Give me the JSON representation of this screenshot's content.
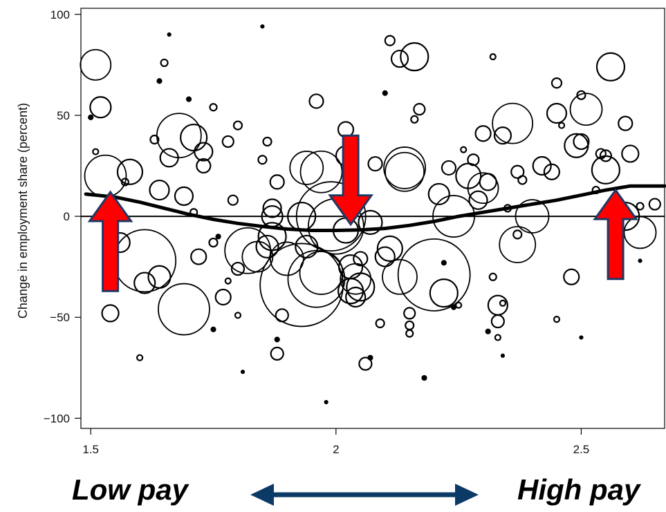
{
  "chart_data": {
    "type": "scatter",
    "ylabel": "Change in employment share (percent)",
    "xlim": [
      1.48,
      2.67
    ],
    "ylim": [
      -105,
      103
    ],
    "x_ticks": [
      1.5,
      2,
      2.5
    ],
    "y_ticks": [
      -100,
      -50,
      0,
      50,
      100
    ],
    "x_tick_labels": [
      "1.5",
      "2",
      "2.5"
    ],
    "y_tick_labels": [
      "−100",
      "−50",
      "0",
      "50",
      "100"
    ],
    "reference_line_y": 0,
    "marker": "open circles sized by employment weight",
    "points": [
      {
        "x": 1.51,
        "y": 75,
        "r": 22
      },
      {
        "x": 1.52,
        "y": 54,
        "r": 15
      },
      {
        "x": 1.5,
        "y": 49,
        "r": 3
      },
      {
        "x": 1.51,
        "y": 32,
        "r": 4
      },
      {
        "x": 1.53,
        "y": 20,
        "r": 30
      },
      {
        "x": 1.58,
        "y": 22,
        "r": 18
      },
      {
        "x": 1.57,
        "y": 17,
        "r": 5
      },
      {
        "x": 1.56,
        "y": -13,
        "r": 14
      },
      {
        "x": 1.54,
        "y": -48,
        "r": 12
      },
      {
        "x": 1.61,
        "y": -22,
        "r": 45
      },
      {
        "x": 1.61,
        "y": -33,
        "r": 15
      },
      {
        "x": 1.64,
        "y": -30,
        "r": 16
      },
      {
        "x": 1.6,
        "y": -70,
        "r": 4
      },
      {
        "x": 1.64,
        "y": 67,
        "r": 3
      },
      {
        "x": 1.65,
        "y": 76,
        "r": 5
      },
      {
        "x": 1.66,
        "y": 90,
        "r": 2
      },
      {
        "x": 1.63,
        "y": 38,
        "r": 6
      },
      {
        "x": 1.68,
        "y": 40,
        "r": 32
      },
      {
        "x": 1.66,
        "y": 29,
        "r": 13
      },
      {
        "x": 1.71,
        "y": 39,
        "r": 19
      },
      {
        "x": 1.73,
        "y": 32,
        "r": 13
      },
      {
        "x": 1.75,
        "y": 54,
        "r": 5
      },
      {
        "x": 1.73,
        "y": 25,
        "r": 10
      },
      {
        "x": 1.7,
        "y": 58,
        "r": 3
      },
      {
        "x": 1.78,
        "y": 37,
        "r": 8
      },
      {
        "x": 1.8,
        "y": 45,
        "r": 6
      },
      {
        "x": 1.64,
        "y": 13,
        "r": 14
      },
      {
        "x": 1.69,
        "y": 10,
        "r": 13
      },
      {
        "x": 1.71,
        "y": 2,
        "r": 5
      },
      {
        "x": 1.75,
        "y": -13,
        "r": 6
      },
      {
        "x": 1.76,
        "y": -10,
        "r": 3
      },
      {
        "x": 1.72,
        "y": -20,
        "r": 11
      },
      {
        "x": 1.77,
        "y": -40,
        "r": 11
      },
      {
        "x": 1.69,
        "y": -46,
        "r": 37
      },
      {
        "x": 1.78,
        "y": -32,
        "r": 4
      },
      {
        "x": 1.75,
        "y": -56,
        "r": 3
      },
      {
        "x": 1.82,
        "y": -17,
        "r": 33
      },
      {
        "x": 1.8,
        "y": -26,
        "r": 9
      },
      {
        "x": 1.8,
        "y": -49,
        "r": 4
      },
      {
        "x": 1.79,
        "y": 8,
        "r": 7
      },
      {
        "x": 1.84,
        "y": -20,
        "r": 22
      },
      {
        "x": 1.86,
        "y": -15,
        "r": 16
      },
      {
        "x": 1.87,
        "y": -10,
        "r": 20
      },
      {
        "x": 1.87,
        "y": 0,
        "r": 15
      },
      {
        "x": 1.87,
        "y": 4,
        "r": 13
      },
      {
        "x": 1.85,
        "y": 28,
        "r": 6
      },
      {
        "x": 1.86,
        "y": 37,
        "r": 6
      },
      {
        "x": 1.88,
        "y": 17,
        "r": 10
      },
      {
        "x": 1.88,
        "y": -68,
        "r": 9
      },
      {
        "x": 1.89,
        "y": -49,
        "r": 9
      },
      {
        "x": 1.88,
        "y": -61,
        "r": 3
      },
      {
        "x": 1.81,
        "y": -77,
        "r": 2
      },
      {
        "x": 1.85,
        "y": 94,
        "r": 2
      },
      {
        "x": 1.9,
        "y": -21,
        "r": 24
      },
      {
        "x": 1.93,
        "y": -34,
        "r": 60
      },
      {
        "x": 1.94,
        "y": -15,
        "r": 16
      },
      {
        "x": 1.93,
        "y": 0,
        "r": 20
      },
      {
        "x": 1.96,
        "y": -31,
        "r": 41
      },
      {
        "x": 1.97,
        "y": -28,
        "r": 31
      },
      {
        "x": 1.99,
        "y": 0,
        "r": 50
      },
      {
        "x": 1.97,
        "y": 22,
        "r": 30
      },
      {
        "x": 1.94,
        "y": 24,
        "r": 24
      },
      {
        "x": 1.96,
        "y": 57,
        "r": 10
      },
      {
        "x": 1.98,
        "y": -92,
        "r": 2
      },
      {
        "x": 2.0,
        "y": -5,
        "r": 40
      },
      {
        "x": 2.02,
        "y": -7,
        "r": 18
      },
      {
        "x": 2.03,
        "y": -25,
        "r": 17
      },
      {
        "x": 2.04,
        "y": -31,
        "r": 22
      },
      {
        "x": 2.05,
        "y": -35,
        "r": 20
      },
      {
        "x": 2.03,
        "y": -37,
        "r": 18
      },
      {
        "x": 2.04,
        "y": -40,
        "r": 14
      },
      {
        "x": 2.05,
        "y": -21,
        "r": 10
      },
      {
        "x": 2.02,
        "y": 43,
        "r": 11
      },
      {
        "x": 2.02,
        "y": 30,
        "r": 14
      },
      {
        "x": 2.07,
        "y": -3,
        "r": 17
      },
      {
        "x": 2.08,
        "y": 26,
        "r": 10
      },
      {
        "x": 2.06,
        "y": -73,
        "r": 9
      },
      {
        "x": 2.07,
        "y": -70,
        "r": 3
      },
      {
        "x": 2.09,
        "y": -53,
        "r": 6
      },
      {
        "x": 2.11,
        "y": -16,
        "r": 18
      },
      {
        "x": 2.1,
        "y": -20,
        "r": 14
      },
      {
        "x": 2.13,
        "y": -30,
        "r": 25
      },
      {
        "x": 2.14,
        "y": 22,
        "r": 28
      },
      {
        "x": 2.14,
        "y": 24,
        "r": 30
      },
      {
        "x": 2.15,
        "y": -48,
        "r": 8
      },
      {
        "x": 2.15,
        "y": -54,
        "r": 6
      },
      {
        "x": 2.15,
        "y": -58,
        "r": 5
      },
      {
        "x": 2.18,
        "y": -80,
        "r": 3
      },
      {
        "x": 2.1,
        "y": 61,
        "r": 3
      },
      {
        "x": 2.11,
        "y": 87,
        "r": 7
      },
      {
        "x": 2.13,
        "y": 78,
        "r": 12
      },
      {
        "x": 2.16,
        "y": 79,
        "r": 20
      },
      {
        "x": 2.17,
        "y": 53,
        "r": 8
      },
      {
        "x": 2.16,
        "y": 48,
        "r": 5
      },
      {
        "x": 2.2,
        "y": -29,
        "r": 52
      },
      {
        "x": 2.22,
        "y": -38,
        "r": 20
      },
      {
        "x": 2.21,
        "y": 11,
        "r": 15
      },
      {
        "x": 2.23,
        "y": 24,
        "r": 10
      },
      {
        "x": 2.24,
        "y": -45,
        "r": 3
      },
      {
        "x": 2.22,
        "y": -23,
        "r": 3
      },
      {
        "x": 2.25,
        "y": -44,
        "r": 4
      },
      {
        "x": 2.24,
        "y": 0,
        "r": 30
      },
      {
        "x": 2.27,
        "y": 20,
        "r": 18
      },
      {
        "x": 2.28,
        "y": 28,
        "r": 8
      },
      {
        "x": 2.26,
        "y": 33,
        "r": 4
      },
      {
        "x": 2.3,
        "y": 14,
        "r": 22
      },
      {
        "x": 2.29,
        "y": 8,
        "r": 13
      },
      {
        "x": 2.31,
        "y": 17,
        "r": 12
      },
      {
        "x": 2.3,
        "y": 41,
        "r": 11
      },
      {
        "x": 2.32,
        "y": -30,
        "r": 5
      },
      {
        "x": 2.33,
        "y": -44,
        "r": 14
      },
      {
        "x": 2.34,
        "y": -43,
        "r": 4
      },
      {
        "x": 2.33,
        "y": -52,
        "r": 9
      },
      {
        "x": 2.31,
        "y": -57,
        "r": 3
      },
      {
        "x": 2.33,
        "y": -60,
        "r": 4
      },
      {
        "x": 2.34,
        "y": -69,
        "r": 2
      },
      {
        "x": 2.32,
        "y": 79,
        "r": 4
      },
      {
        "x": 2.36,
        "y": 46,
        "r": 29
      },
      {
        "x": 2.34,
        "y": 40,
        "r": 12
      },
      {
        "x": 2.35,
        "y": 4,
        "r": 5
      },
      {
        "x": 2.37,
        "y": 22,
        "r": 9
      },
      {
        "x": 2.38,
        "y": 18,
        "r": 6
      },
      {
        "x": 2.37,
        "y": -9,
        "r": 6
      },
      {
        "x": 2.37,
        "y": -14,
        "r": 26
      },
      {
        "x": 2.4,
        "y": 0,
        "r": 24
      },
      {
        "x": 2.42,
        "y": 25,
        "r": 13
      },
      {
        "x": 2.44,
        "y": 22,
        "r": 11
      },
      {
        "x": 2.45,
        "y": 66,
        "r": 7
      },
      {
        "x": 2.45,
        "y": 51,
        "r": 14
      },
      {
        "x": 2.45,
        "y": -51,
        "r": 4
      },
      {
        "x": 2.46,
        "y": 45,
        "r": 4
      },
      {
        "x": 2.48,
        "y": -30,
        "r": 11
      },
      {
        "x": 2.49,
        "y": 35,
        "r": 17
      },
      {
        "x": 2.5,
        "y": 37,
        "r": 11
      },
      {
        "x": 2.5,
        "y": 60,
        "r": 6
      },
      {
        "x": 2.51,
        "y": 53,
        "r": 23
      },
      {
        "x": 2.5,
        "y": -60,
        "r": 2
      },
      {
        "x": 2.53,
        "y": 13,
        "r": 5
      },
      {
        "x": 2.54,
        "y": 31,
        "r": 7
      },
      {
        "x": 2.55,
        "y": 30,
        "r": 8
      },
      {
        "x": 2.55,
        "y": 23,
        "r": 20
      },
      {
        "x": 2.56,
        "y": 74,
        "r": 20
      },
      {
        "x": 2.59,
        "y": 46,
        "r": 10
      },
      {
        "x": 2.6,
        "y": 31,
        "r": 12
      },
      {
        "x": 2.59,
        "y": 0,
        "r": 20
      },
      {
        "x": 2.62,
        "y": -8,
        "r": 23
      },
      {
        "x": 2.62,
        "y": 5,
        "r": 5
      },
      {
        "x": 2.65,
        "y": 6,
        "r": 8
      },
      {
        "x": 2.62,
        "y": -22,
        "r": 2
      }
    ],
    "smooth_line": {
      "x": [
        1.49,
        1.55,
        1.6,
        1.65,
        1.7,
        1.75,
        1.8,
        1.85,
        1.9,
        1.95,
        2.0,
        2.05,
        2.1,
        2.15,
        2.2,
        2.25,
        2.3,
        2.35,
        2.4,
        2.45,
        2.5,
        2.55,
        2.6,
        2.65,
        2.67
      ],
      "y": [
        11,
        9.5,
        7,
        4,
        1,
        -1.5,
        -3.5,
        -5,
        -6.3,
        -7,
        -7,
        -6.7,
        -6,
        -4.5,
        -2.5,
        0,
        2,
        4,
        6,
        8,
        10.5,
        13,
        15,
        15,
        15
      ]
    }
  },
  "annotations": {
    "arrows": [
      {
        "x": 1.54,
        "y_tip": 12,
        "y_tail": -37,
        "direction": "up",
        "color": "#ff0000"
      },
      {
        "x": 2.03,
        "y_tip": -4,
        "y_tail": 40,
        "direction": "down",
        "color": "#ff0000"
      },
      {
        "x": 2.57,
        "y_tip": 13,
        "y_tail": -31,
        "direction": "up",
        "color": "#ff0000"
      }
    ],
    "arrow_outline_color": "#1f3864",
    "double_arrow_color": "#0b3a66"
  },
  "captions": {
    "left": "Low pay",
    "right": "High pay"
  }
}
